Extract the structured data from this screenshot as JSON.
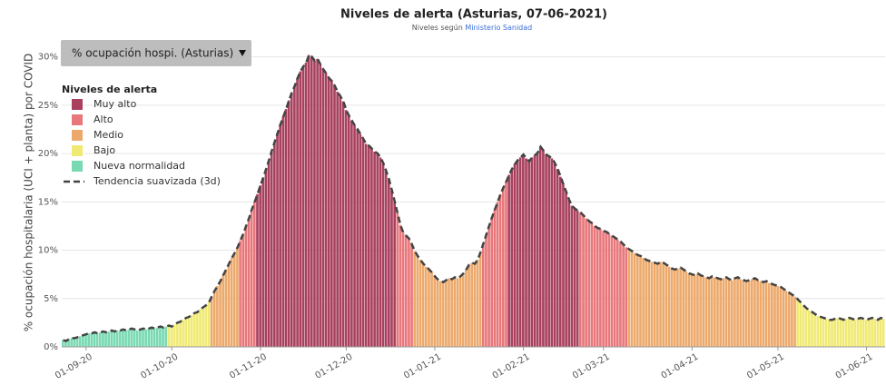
{
  "chart_data": {
    "type": "bar",
    "title": "Niveles de alerta (Asturias, 07-06-2021)",
    "subtitle": "Niveles según",
    "subtitle_link": "Ministerio Sanidad",
    "selector": "% ocupación hospi. (Asturias)",
    "y_label": "% ocupación hospitalaria (UCI + planta) por COVID",
    "legend_title": "Niveles de alerta",
    "levels": [
      {
        "name": "Muy alto",
        "color": "#a8405e"
      },
      {
        "name": "Alto",
        "color": "#e8777b"
      },
      {
        "name": "Medio",
        "color": "#eca96b"
      },
      {
        "name": "Bajo",
        "color": "#f0ea72"
      },
      {
        "name": "Nueva normalidad",
        "color": "#78d9b2"
      }
    ],
    "trend": {
      "name": "Tendencia suavizada (3d)",
      "color": "#444444"
    },
    "level_runs": [
      [
        4,
        37
      ],
      [
        3,
        15
      ],
      [
        2,
        10
      ],
      [
        1,
        6
      ],
      [
        0,
        49
      ],
      [
        1,
        6
      ],
      [
        2,
        24
      ],
      [
        1,
        9
      ],
      [
        0,
        25
      ],
      [
        1,
        17
      ],
      [
        2,
        59
      ],
      [
        3,
        31
      ]
    ],
    "ylim": [
      0,
      31
    ],
    "yticks": [
      {
        "value": 0,
        "label": "0%"
      },
      {
        "value": 5,
        "label": "5%"
      },
      {
        "value": 10,
        "label": "10%"
      },
      {
        "value": 15,
        "label": "15%"
      },
      {
        "value": 20,
        "label": "20%"
      },
      {
        "value": 25,
        "label": "25%"
      },
      {
        "value": 30,
        "label": "30%"
      }
    ],
    "grid": true,
    "categories": [
      null,
      null,
      null,
      null,
      null,
      null,
      null,
      null,
      "01-09-20",
      null,
      null,
      null,
      null,
      null,
      null,
      null,
      null,
      null,
      null,
      null,
      null,
      null,
      null,
      null,
      null,
      null,
      null,
      null,
      null,
      null,
      null,
      null,
      null,
      null,
      null,
      null,
      null,
      null,
      "01-10-20",
      null,
      null,
      null,
      null,
      null,
      null,
      null,
      null,
      null,
      null,
      null,
      null,
      null,
      null,
      null,
      null,
      null,
      null,
      null,
      null,
      null,
      null,
      null,
      null,
      null,
      null,
      null,
      null,
      null,
      null,
      "01-11-20",
      null,
      null,
      null,
      null,
      null,
      null,
      null,
      null,
      null,
      null,
      null,
      null,
      null,
      null,
      null,
      null,
      null,
      null,
      null,
      null,
      null,
      null,
      null,
      null,
      null,
      null,
      null,
      null,
      null,
      "01-12-20",
      null,
      null,
      null,
      null,
      null,
      null,
      null,
      null,
      null,
      null,
      null,
      null,
      null,
      null,
      null,
      null,
      null,
      null,
      null,
      null,
      null,
      null,
      null,
      null,
      null,
      null,
      null,
      null,
      null,
      null,
      "01-01-21",
      null,
      null,
      null,
      null,
      null,
      null,
      null,
      null,
      null,
      null,
      null,
      null,
      null,
      null,
      null,
      null,
      null,
      null,
      null,
      null,
      null,
      null,
      null,
      null,
      null,
      null,
      null,
      null,
      null,
      null,
      "01-02-21",
      null,
      null,
      null,
      null,
      null,
      null,
      null,
      null,
      null,
      null,
      null,
      null,
      null,
      null,
      null,
      null,
      null,
      null,
      null,
      null,
      null,
      null,
      null,
      null,
      null,
      null,
      null,
      "01-03-21",
      null,
      null,
      null,
      null,
      null,
      null,
      null,
      null,
      null,
      null,
      null,
      null,
      null,
      null,
      null,
      null,
      null,
      null,
      null,
      null,
      null,
      null,
      null,
      null,
      null,
      null,
      null,
      null,
      null,
      null,
      "01-04-21",
      null,
      null,
      null,
      null,
      null,
      null,
      null,
      null,
      null,
      null,
      null,
      null,
      null,
      null,
      null,
      null,
      null,
      null,
      null,
      null,
      null,
      null,
      null,
      null,
      null,
      null,
      null,
      null,
      null,
      "01-05-21",
      null,
      null,
      null,
      null,
      null,
      null,
      null,
      null,
      null,
      null,
      null,
      null,
      null,
      null,
      null,
      null,
      null,
      null,
      null,
      null,
      null,
      null,
      null,
      null,
      null,
      null,
      null,
      null,
      null,
      null,
      "01-06-21",
      null,
      null,
      null,
      null,
      null,
      null
    ],
    "values": [
      0.7,
      0.6,
      0.8,
      0.9,
      0.9,
      1.0,
      1.1,
      1.2,
      1.3,
      1.4,
      1.4,
      1.5,
      1.4,
      1.5,
      1.6,
      1.5,
      1.6,
      1.7,
      1.6,
      1.7,
      1.7,
      1.8,
      1.7,
      1.8,
      1.9,
      1.8,
      1.7,
      1.8,
      1.9,
      1.8,
      1.9,
      2.0,
      1.9,
      2.0,
      2.1,
      2.0,
      2.1,
      2.2,
      2.1,
      2.3,
      2.5,
      2.6,
      2.8,
      3.0,
      3.1,
      3.3,
      3.5,
      3.6,
      3.9,
      4.1,
      4.3,
      4.6,
      5.2,
      5.8,
      6.3,
      6.8,
      7.4,
      8.0,
      8.6,
      9.2,
      9.7,
      10.3,
      11.0,
      11.7,
      12.5,
      13.3,
      14.2,
      15.0,
      15.8,
      16.7,
      17.5,
      18.4,
      19.3,
      20.3,
      21.2,
      22.1,
      23.0,
      23.8,
      24.6,
      25.5,
      26.3,
      27.0,
      27.8,
      28.5,
      29.0,
      29.4,
      30.2,
      30.0,
      29.6,
      29.8,
      29.2,
      28.7,
      28.3,
      27.8,
      27.5,
      27.0,
      26.4,
      25.9,
      25.4,
      24.5,
      23.9,
      23.4,
      22.9,
      22.5,
      22.0,
      21.5,
      21.0,
      20.8,
      20.5,
      20.2,
      20.0,
      19.6,
      19.0,
      18.2,
      17.3,
      16.2,
      15.0,
      13.8,
      12.6,
      11.8,
      11.5,
      11.2,
      10.6,
      9.9,
      9.4,
      9.0,
      8.6,
      8.3,
      8.0,
      7.7,
      7.3,
      7.0,
      6.8,
      6.7,
      6.9,
      7.1,
      7.0,
      7.2,
      7.1,
      7.3,
      7.6,
      8.0,
      8.5,
      8.7,
      8.6,
      9.0,
      9.8,
      10.7,
      11.6,
      12.5,
      13.4,
      14.2,
      15.0,
      15.8,
      16.5,
      17.1,
      17.8,
      18.4,
      18.9,
      19.3,
      19.6,
      19.9,
      19.5,
      19.2,
      19.6,
      19.8,
      20.1,
      20.7,
      20.3,
      19.9,
      19.7,
      19.5,
      19.0,
      18.4,
      17.6,
      16.8,
      16.0,
      15.2,
      14.6,
      14.3,
      14.1,
      13.9,
      13.6,
      13.3,
      13.0,
      12.8,
      12.5,
      12.3,
      12.2,
      12.0,
      11.9,
      11.7,
      11.5,
      11.3,
      11.1,
      10.9,
      10.6,
      10.3,
      10.1,
      9.9,
      9.7,
      9.5,
      9.4,
      9.2,
      9.0,
      8.9,
      8.8,
      8.7,
      8.6,
      8.8,
      8.7,
      8.5,
      8.3,
      8.1,
      8.0,
      8.1,
      8.2,
      8.0,
      7.8,
      7.6,
      7.5,
      7.4,
      7.6,
      7.4,
      7.3,
      7.2,
      7.1,
      7.3,
      7.2,
      7.1,
      7.0,
      7.1,
      7.2,
      7.0,
      6.9,
      7.1,
      7.2,
      7.0,
      6.9,
      6.8,
      6.9,
      7.0,
      7.1,
      6.9,
      6.8,
      6.7,
      6.8,
      6.6,
      6.5,
      6.4,
      6.3,
      6.2,
      6.0,
      5.8,
      5.6,
      5.4,
      5.2,
      4.9,
      4.6,
      4.3,
      4.0,
      3.8,
      3.6,
      3.4,
      3.2,
      3.1,
      3.0,
      2.9,
      2.8,
      2.8,
      2.9,
      3.0,
      2.9,
      2.8,
      2.9,
      3.0,
      2.9,
      2.8,
      2.9,
      3.0,
      2.9,
      2.8,
      2.9,
      3.0,
      2.9,
      2.8,
      3.0,
      2.9
    ]
  }
}
